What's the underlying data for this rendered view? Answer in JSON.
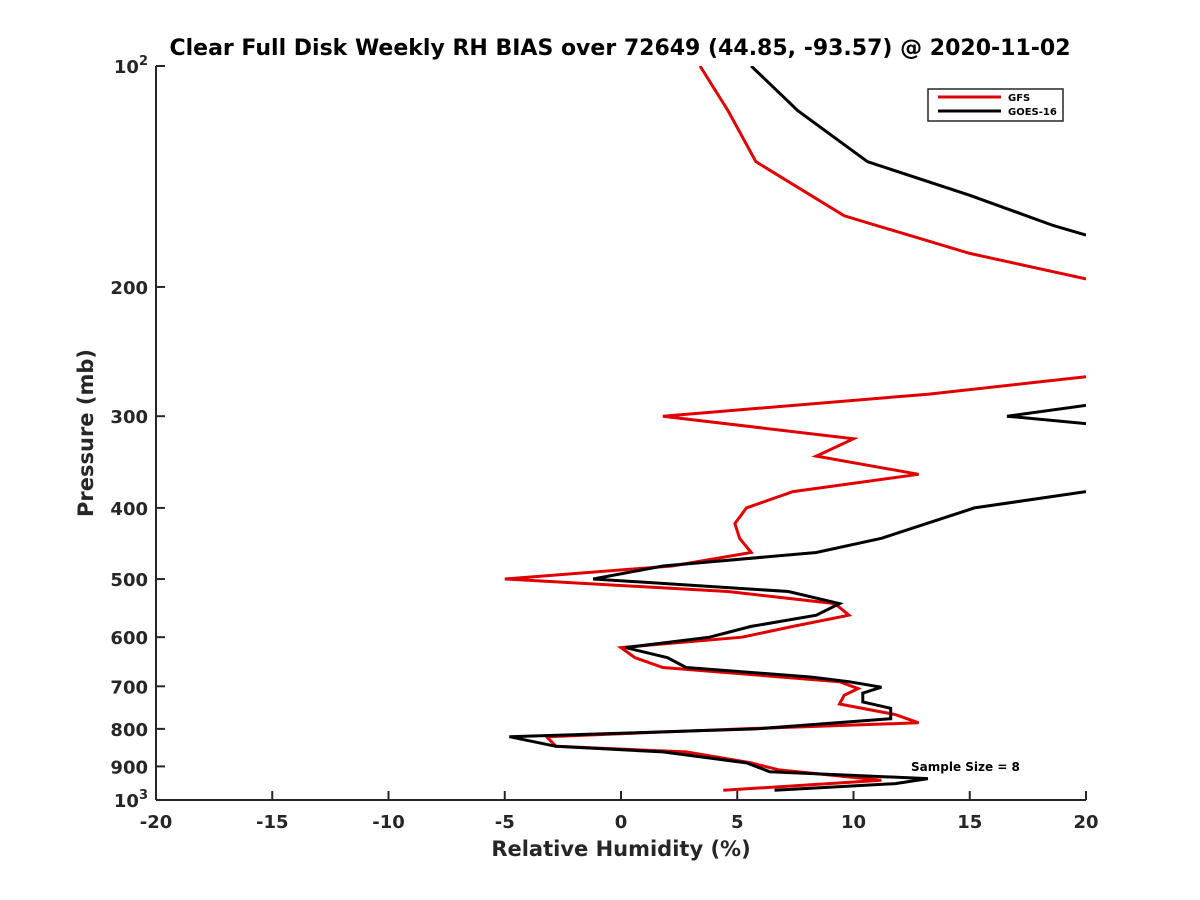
{
  "chart_data": {
    "type": "line",
    "title": "Clear Full Disk Weekly RH BIAS over 72649 (44.85, -93.57) @ 2020-11-02",
    "xlabel": "Relative Humidity (%)",
    "ylabel": "Pressure (mb)",
    "xlim": [
      -20,
      20
    ],
    "ylim": [
      100,
      1000
    ],
    "y_scale": "log",
    "y_reversed": true,
    "grid": false,
    "legend_position": "top-right",
    "x_ticks": [
      -20,
      -15,
      -10,
      -5,
      0,
      5,
      10,
      15,
      20
    ],
    "x_tick_labels": [
      "-20",
      "-15",
      "-10",
      "-5",
      "0",
      "5",
      "10",
      "15",
      "20"
    ],
    "y_ticks": [
      100,
      200,
      300,
      400,
      500,
      600,
      700,
      800,
      900,
      1000
    ],
    "y_tick_labels": [
      {
        "base": "10",
        "exp": "2"
      },
      {
        "base": "200",
        "exp": ""
      },
      {
        "base": "300",
        "exp": ""
      },
      {
        "base": "400",
        "exp": ""
      },
      {
        "base": "500",
        "exp": ""
      },
      {
        "base": "600",
        "exp": ""
      },
      {
        "base": "700",
        "exp": ""
      },
      {
        "base": "800",
        "exp": ""
      },
      {
        "base": "900",
        "exp": ""
      },
      {
        "base": "10",
        "exp": "3"
      }
    ],
    "annotation": "Sample Size = 8",
    "series": [
      {
        "name": "GFS",
        "color": "#e00000",
        "points": [
          [
            3.4,
            100
          ],
          [
            4.6,
            115
          ],
          [
            5.8,
            135
          ],
          [
            9.6,
            160
          ],
          [
            15,
            180
          ],
          [
            20,
            195
          ],
          [
            null,
            null
          ],
          [
            20,
            265
          ],
          [
            13.2,
            280
          ],
          [
            1.8,
            300
          ],
          [
            10,
            322
          ],
          [
            8.4,
            340
          ],
          [
            12.8,
            360
          ],
          [
            7.4,
            380
          ],
          [
            5.4,
            400
          ],
          [
            4.9,
            420
          ],
          [
            5.1,
            440
          ],
          [
            5.6,
            460
          ],
          [
            2.2,
            480
          ],
          [
            -5,
            500
          ],
          [
            4.6,
            520
          ],
          [
            9.2,
            540
          ],
          [
            9.8,
            560
          ],
          [
            7.4,
            580
          ],
          [
            5.2,
            600
          ],
          [
            0,
            620
          ],
          [
            0.6,
            640
          ],
          [
            1.8,
            660
          ],
          [
            9.4,
            690
          ],
          [
            10.2,
            705
          ],
          [
            9.6,
            720
          ],
          [
            9.4,
            740
          ],
          [
            11.8,
            765
          ],
          [
            12.8,
            785
          ],
          [
            5.2,
            800
          ],
          [
            -3.2,
            820
          ],
          [
            -2.8,
            845
          ],
          [
            2.8,
            860
          ],
          [
            5.6,
            890
          ],
          [
            6.8,
            910
          ],
          [
            11.2,
            940
          ],
          [
            4.4,
            970
          ]
        ]
      },
      {
        "name": "GOES-16",
        "color": "#000000",
        "points": [
          [
            5.6,
            100
          ],
          [
            7.6,
            115
          ],
          [
            10.6,
            135
          ],
          [
            15,
            150
          ],
          [
            18.6,
            165
          ],
          [
            20,
            170
          ],
          [
            null,
            null
          ],
          [
            20,
            290
          ],
          [
            16.6,
            300
          ],
          [
            20,
            307
          ],
          [
            null,
            null
          ],
          [
            20,
            380
          ],
          [
            15.2,
            400
          ],
          [
            11.2,
            440
          ],
          [
            8.4,
            460
          ],
          [
            1.8,
            480
          ],
          [
            -1.2,
            500
          ],
          [
            7.2,
            520
          ],
          [
            9.4,
            540
          ],
          [
            8.4,
            560
          ],
          [
            5.6,
            580
          ],
          [
            3.8,
            600
          ],
          [
            0.2,
            620
          ],
          [
            2,
            640
          ],
          [
            2.8,
            660
          ],
          [
            8.2,
            680
          ],
          [
            9.8,
            690
          ],
          [
            11.2,
            702
          ],
          [
            10.4,
            715
          ],
          [
            10.4,
            735
          ],
          [
            11.6,
            750
          ],
          [
            11.6,
            775
          ],
          [
            5.8,
            800
          ],
          [
            -4.8,
            820
          ],
          [
            -2.8,
            845
          ],
          [
            1.8,
            860
          ],
          [
            5.4,
            890
          ],
          [
            6.4,
            915
          ],
          [
            13.2,
            935
          ],
          [
            11.8,
            950
          ],
          [
            6.6,
            970
          ]
        ]
      }
    ]
  }
}
